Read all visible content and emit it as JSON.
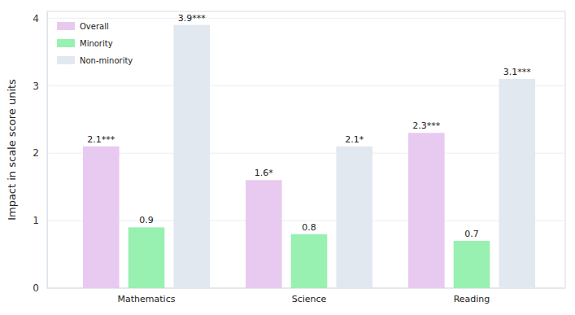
{
  "chart_data": {
    "type": "bar",
    "y_label": "Impact in scale score units",
    "categories": [
      "Mathematics",
      "Science",
      "Reading"
    ],
    "series": [
      {
        "name": "Overall",
        "color": "#e8c9f0",
        "values": [
          2.1,
          1.6,
          2.3
        ],
        "value_labels": [
          "2.1***",
          "1.6*",
          "2.3***"
        ]
      },
      {
        "name": "Minority",
        "color": "#98f0b1",
        "values": [
          0.9,
          0.8,
          0.7
        ]
      },
      {
        "name": "Non-minority",
        "color": "#e1e8f0",
        "values": [
          3.9,
          2.1,
          3.1
        ],
        "value_labels": [
          "3.9***",
          "2.1*",
          "3.1***"
        ]
      }
    ],
    "ylim": [
      0,
      4.1
    ],
    "yticks": [
      0,
      1,
      2,
      3,
      4
    ],
    "grid": true,
    "legend": "upper left",
    "data_labels": true
  }
}
